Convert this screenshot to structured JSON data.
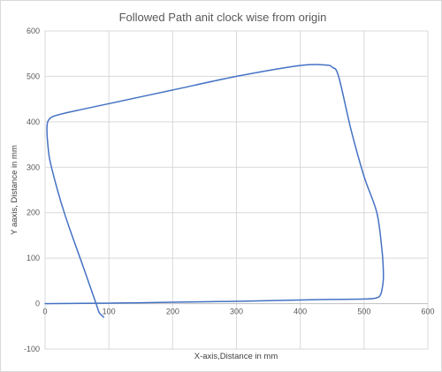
{
  "chart_data": {
    "type": "scatter",
    "title": "Followed Path anit clock wise from origin",
    "xlabel": "X-axis,Distance in mm",
    "ylabel": "Y aaxis, Distance in mm",
    "xlim": [
      0,
      600
    ],
    "ylim": [
      -100,
      600
    ],
    "xticks": [
      0,
      100,
      200,
      300,
      400,
      500,
      600
    ],
    "yticks": [
      -100,
      0,
      100,
      200,
      300,
      400,
      500,
      600
    ],
    "grid": true,
    "legend": "none",
    "series": [
      {
        "color": "#4472c4",
        "x": [
          0,
          100,
          200,
          300,
          400,
          450,
          500,
          518,
          526,
          530,
          530,
          528,
          520,
          500,
          480,
          460,
          450,
          440,
          400,
          300,
          200,
          100,
          50,
          20,
          8,
          3,
          5,
          10,
          30,
          60,
          80,
          85,
          92
        ],
        "y": [
          0,
          1,
          3,
          5,
          8,
          9,
          10,
          12,
          20,
          50,
          80,
          120,
          200,
          280,
          380,
          500,
          520,
          525,
          524,
          500,
          470,
          440,
          425,
          415,
          408,
          390,
          340,
          300,
          200,
          80,
          0,
          -20,
          -30
        ]
      }
    ]
  }
}
